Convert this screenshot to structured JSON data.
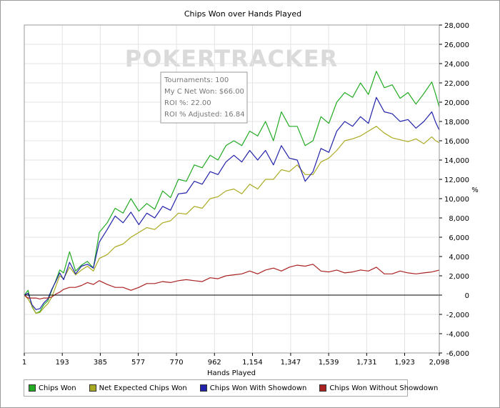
{
  "chart_data": {
    "type": "line",
    "title": "Chips Won over Hands Played",
    "xlabel": "Hands Played",
    "ylabel": "",
    "y_unit_label": "%",
    "xlim": [
      1,
      2098
    ],
    "ylim": [
      -6000,
      28000
    ],
    "x_ticks": [
      "1",
      "193",
      "385",
      "577",
      "770",
      "962",
      "1,154",
      "1,347",
      "1,539",
      "1,731",
      "1,923",
      "2,098"
    ],
    "x_tick_values": [
      1,
      193,
      385,
      577,
      770,
      962,
      1154,
      1347,
      1539,
      1731,
      1923,
      2098
    ],
    "y_ticks": [
      "-6,000",
      "-4,000",
      "-2,000",
      "0",
      "2,000",
      "4,000",
      "6,000",
      "8,000",
      "10,000",
      "12,000",
      "14,000",
      "16,000",
      "18,000",
      "20,000",
      "22,000",
      "24,000",
      "26,000",
      "28,000"
    ],
    "y_tick_values": [
      -6000,
      -4000,
      -2000,
      0,
      2000,
      4000,
      6000,
      8000,
      10000,
      12000,
      14000,
      16000,
      18000,
      20000,
      22000,
      24000,
      26000,
      28000
    ],
    "x": [
      1,
      20,
      40,
      60,
      80,
      100,
      120,
      140,
      160,
      180,
      200,
      230,
      260,
      290,
      320,
      350,
      380,
      420,
      460,
      500,
      540,
      580,
      620,
      660,
      700,
      740,
      780,
      820,
      860,
      900,
      940,
      980,
      1020,
      1060,
      1100,
      1140,
      1180,
      1220,
      1260,
      1300,
      1340,
      1380,
      1420,
      1460,
      1500,
      1540,
      1580,
      1620,
      1660,
      1700,
      1740,
      1780,
      1820,
      1860,
      1900,
      1940,
      1980,
      2020,
      2060,
      2080,
      2098
    ],
    "series": [
      {
        "name": "Chips Won",
        "color": "#22aa22",
        "values": [
          0,
          500,
          -1200,
          -1900,
          -1700,
          -1000,
          -600,
          500,
          1500,
          2600,
          2300,
          4500,
          2500,
          3100,
          3500,
          2800,
          6500,
          7500,
          9000,
          8500,
          10000,
          8700,
          9500,
          8900,
          10800,
          10100,
          12000,
          11800,
          13500,
          13200,
          14500,
          14000,
          15500,
          16000,
          15500,
          17000,
          16500,
          18000,
          16000,
          19000,
          17500,
          17500,
          15500,
          16000,
          18500,
          17800,
          20000,
          21000,
          20500,
          22000,
          20800,
          23200,
          21500,
          21800,
          20400,
          21000,
          19800,
          20900,
          22100,
          20800,
          19500
        ]
      },
      {
        "name": "Net Expected Chips Won",
        "color": "#aaaa22",
        "values": [
          0,
          -400,
          -1100,
          -1900,
          -1800,
          -1300,
          -900,
          -200,
          900,
          2000,
          1700,
          2900,
          2100,
          2600,
          3000,
          2500,
          3800,
          4200,
          5000,
          5300,
          6000,
          6500,
          7000,
          6800,
          7500,
          7700,
          8500,
          8400,
          9200,
          9000,
          10000,
          10200,
          10800,
          11000,
          10500,
          11500,
          11000,
          12000,
          12000,
          13000,
          12800,
          13500,
          12500,
          12500,
          13800,
          14200,
          15000,
          16000,
          16200,
          16500,
          17000,
          17500,
          16800,
          16300,
          16100,
          15900,
          16200,
          15700,
          16400,
          16000,
          15800
        ]
      },
      {
        "name": "Chips Won With Showdown",
        "color": "#2222aa",
        "values": [
          0,
          200,
          -1000,
          -1500,
          -1400,
          -800,
          -400,
          600,
          1400,
          2300,
          1600,
          3400,
          2200,
          3000,
          3200,
          2800,
          5500,
          6800,
          8200,
          7500,
          8600,
          7300,
          8500,
          8000,
          9200,
          8800,
          10500,
          10600,
          11800,
          11500,
          12800,
          12500,
          13800,
          14500,
          13800,
          15000,
          14000,
          15000,
          13500,
          15500,
          14200,
          14000,
          11800,
          12800,
          15200,
          14800,
          17000,
          18000,
          17500,
          18500,
          17800,
          20500,
          19000,
          18800,
          18000,
          18200,
          17300,
          18000,
          19000,
          17900,
          17100
        ]
      },
      {
        "name": "Chips Won Without Showdown",
        "color": "#aa2222",
        "values": [
          0,
          -300,
          -300,
          -300,
          -400,
          -300,
          -300,
          -200,
          100,
          300,
          600,
          800,
          800,
          1000,
          1300,
          1100,
          1500,
          1100,
          800,
          800,
          500,
          800,
          1200,
          1200,
          1400,
          1300,
          1500,
          1600,
          1500,
          1400,
          1800,
          1700,
          2000,
          2100,
          2200,
          2500,
          2200,
          2600,
          2800,
          2500,
          2900,
          3100,
          3000,
          3200,
          2500,
          2400,
          2600,
          2300,
          2400,
          2600,
          2500,
          2900,
          2200,
          2200,
          2500,
          2300,
          2200,
          2300,
          2400,
          2500,
          2600
        ]
      }
    ],
    "annotation_box": [
      "Tournaments: 100",
      "My C Net Won: $66.00",
      "ROI %: 22.00",
      "ROI % Adjusted: 16.84"
    ],
    "watermark": "POKERTRACKER",
    "legend_position": "bottom-left"
  }
}
